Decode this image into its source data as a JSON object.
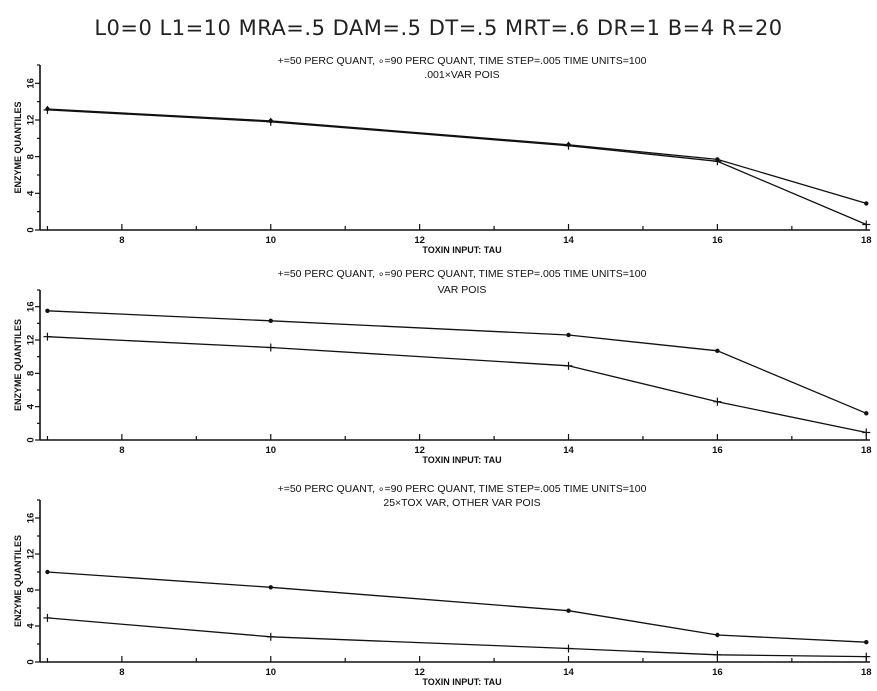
{
  "main_title": "L0=0 L1=10 MRA=.5 DAM=.5 DT=.5 MRT=.6 DR=1 B=4 R=20",
  "chart_data": [
    {
      "type": "line",
      "subtitle_1": "+=50 PERC QUANT, ∘=90 PERC QUANT, TIME STEP=.005 TIME UNITS=100",
      "subtitle_2": ".001×VAR POIS",
      "xlabel": "TOXIN INPUT: TAU",
      "ylabel": "ENZYME QUANTILES",
      "xlim": [
        6.9,
        18.05
      ],
      "ylim": [
        0,
        18
      ],
      "x_ticks": [
        8,
        10,
        12,
        14,
        16,
        18
      ],
      "y_ticks": [
        0,
        4,
        8,
        12,
        16
      ],
      "x": [
        7,
        10,
        14,
        16,
        18
      ],
      "series": [
        {
          "name": "+=50 PERC QUANT",
          "marker": "plus",
          "values": [
            13.1,
            11.8,
            9.2,
            7.5,
            0.6
          ]
        },
        {
          "name": "∘=90 PERC QUANT",
          "marker": "dot",
          "values": [
            13.2,
            11.9,
            9.3,
            7.7,
            2.9
          ]
        }
      ]
    },
    {
      "type": "line",
      "subtitle_1": "+=50 PERC QUANT, ∘=90 PERC QUANT, TIME STEP=.005 TIME UNITS=100",
      "subtitle_2": "VAR POIS",
      "xlabel": "TOXIN INPUT: TAU",
      "ylabel": "ENZYME QUANTILES",
      "xlim": [
        6.9,
        18.05
      ],
      "ylim": [
        0,
        18
      ],
      "x_ticks": [
        8,
        10,
        12,
        14,
        16,
        18
      ],
      "y_ticks": [
        0,
        4,
        8,
        12,
        16
      ],
      "x": [
        7,
        10,
        14,
        16,
        18
      ],
      "series": [
        {
          "name": "+=50 PERC QUANT",
          "marker": "plus",
          "values": [
            12.4,
            11.1,
            8.9,
            4.6,
            0.9
          ]
        },
        {
          "name": "∘=90 PERC QUANT",
          "marker": "dot",
          "values": [
            15.5,
            14.3,
            12.6,
            10.7,
            3.2
          ]
        }
      ]
    },
    {
      "type": "line",
      "subtitle_1": "+=50 PERC QUANT, ∘=90 PERC QUANT, TIME STEP=.005 TIME UNITS=100",
      "subtitle_2": "25×TOX VAR, OTHER VAR POIS",
      "xlabel": "TOXIN INPUT: TAU",
      "ylabel": "ENZYME QUANTILES",
      "xlim": [
        6.9,
        18.05
      ],
      "ylim": [
        0,
        18
      ],
      "x_ticks": [
        8,
        10,
        12,
        14,
        16,
        18
      ],
      "y_ticks": [
        0,
        4,
        8,
        12,
        16
      ],
      "x": [
        7,
        10,
        14,
        16,
        18
      ],
      "series": [
        {
          "name": "+=50 PERC QUANT",
          "marker": "plus",
          "values": [
            4.9,
            2.8,
            1.5,
            0.8,
            0.6
          ]
        },
        {
          "name": "∘=90 PERC QUANT",
          "marker": "dot",
          "values": [
            10.0,
            8.3,
            5.7,
            3.0,
            2.2
          ]
        }
      ]
    }
  ]
}
